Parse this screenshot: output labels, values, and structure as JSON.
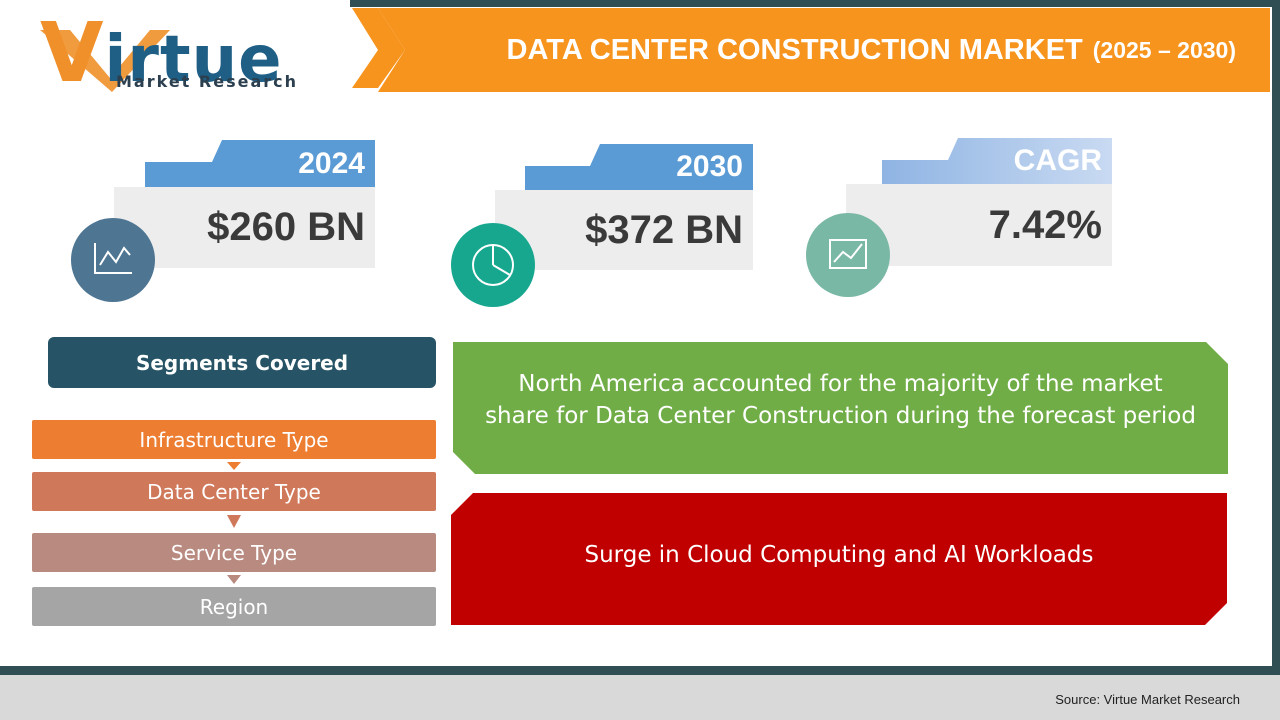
{
  "logo": {
    "name": "Virtue",
    "tagline": "Market Research"
  },
  "header": {
    "title": "DATA CENTER CONSTRUCTION MARKET",
    "period": "(2025 – 2030)"
  },
  "stats": [
    {
      "label": "2024",
      "value": "$260 BN"
    },
    {
      "label": "2030",
      "value": "$372 BN"
    },
    {
      "label": "CAGR",
      "value": "7.42%"
    }
  ],
  "segments": {
    "title": "Segments Covered",
    "items": [
      "Infrastructure Type",
      "Data Center Type",
      "Service Type",
      "Region"
    ]
  },
  "highlights": [
    "North America accounted for the majority of the market share for Data Center Construction during the forecast period",
    "Surge in Cloud Computing and AI Workloads"
  ],
  "footer": {
    "source": "Source: Virtue Market Research"
  }
}
